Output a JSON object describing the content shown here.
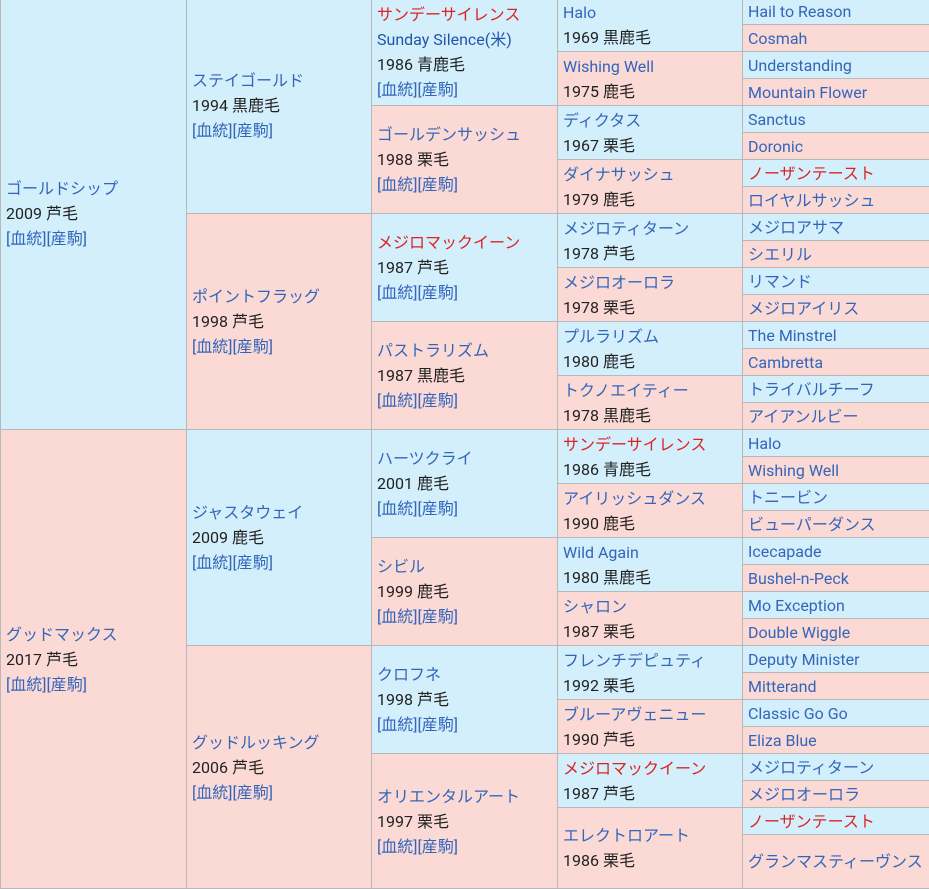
{
  "link_labels": [
    "[血統]",
    "[産駒]"
  ],
  "generations": [
    [
      {
        "name": "ゴールドシップ",
        "info": "2009 芦毛"
      },
      {
        "name": "グッドマックス",
        "info": "2017 芦毛"
      }
    ],
    [
      {
        "name": "ステイゴールド",
        "info": "1994 黒鹿毛"
      },
      {
        "name": "ポイントフラッグ",
        "info": "1998 芦毛"
      },
      {
        "name": "ジャスタウェイ",
        "info": "2009 鹿毛"
      },
      {
        "name": "グッドルッキング",
        "info": "2006 芦毛"
      }
    ],
    [
      {
        "name": "サンデーサイレンス",
        "highlight": true,
        "alt": "Sunday Silence(米)",
        "info": "1986 青鹿毛"
      },
      {
        "name": "ゴールデンサッシュ",
        "info": "1988 栗毛"
      },
      {
        "name": "メジロマックイーン",
        "highlight": true,
        "info": "1987 芦毛"
      },
      {
        "name": "パストラリズム",
        "info": "1987 黒鹿毛"
      },
      {
        "name": "ハーツクライ",
        "info": "2001 鹿毛"
      },
      {
        "name": "シビル",
        "info": "1999 鹿毛"
      },
      {
        "name": "クロフネ",
        "info": "1998 芦毛"
      },
      {
        "name": "オリエンタルアート",
        "info": "1997 栗毛"
      }
    ],
    [
      {
        "name": "Halo",
        "info": "1969 黒鹿毛"
      },
      {
        "name": "Wishing Well",
        "info": "1975 鹿毛"
      },
      {
        "name": "ディクタス",
        "info": "1967 栗毛"
      },
      {
        "name": "ダイナサッシュ",
        "info": "1979 鹿毛"
      },
      {
        "name": "メジロティターン",
        "info": "1978 芦毛"
      },
      {
        "name": "メジロオーロラ",
        "info": "1978 栗毛"
      },
      {
        "name": "プルラリズム",
        "info": "1980 鹿毛"
      },
      {
        "name": "トクノエイティー",
        "info": "1978 黒鹿毛"
      },
      {
        "name": "サンデーサイレンス",
        "highlight": true,
        "info": "1986 青鹿毛"
      },
      {
        "name": "アイリッシュダンス",
        "info": "1990 鹿毛"
      },
      {
        "name": "Wild Again",
        "info": "1980 黒鹿毛"
      },
      {
        "name": "シャロン",
        "info": "1987 栗毛"
      },
      {
        "name": "フレンチデピュティ",
        "info": "1992 栗毛"
      },
      {
        "name": "ブルーアヴェニュー",
        "info": "1990 芦毛"
      },
      {
        "name": "メジロマックイーン",
        "highlight": true,
        "info": "1987 芦毛"
      },
      {
        "name": "エレクトロアート",
        "info": "1986 栗毛"
      }
    ],
    [
      {
        "name": "Hail to Reason"
      },
      {
        "name": "Cosmah"
      },
      {
        "name": "Understanding"
      },
      {
        "name": "Mountain Flower"
      },
      {
        "name": "Sanctus"
      },
      {
        "name": "Doronic"
      },
      {
        "name": "ノーザンテースト",
        "highlight": true
      },
      {
        "name": "ロイヤルサッシュ"
      },
      {
        "name": "メジロアサマ"
      },
      {
        "name": "シエリル"
      },
      {
        "name": "リマンド"
      },
      {
        "name": "メジロアイリス"
      },
      {
        "name": "The Minstrel"
      },
      {
        "name": "Cambretta"
      },
      {
        "name": "トライバルチーフ"
      },
      {
        "name": "アイアンルビー"
      },
      {
        "name": "Halo"
      },
      {
        "name": "Wishing Well"
      },
      {
        "name": "トニービン"
      },
      {
        "name": "ビューパーダンス"
      },
      {
        "name": "Icecapade"
      },
      {
        "name": "Bushel-n-Peck"
      },
      {
        "name": "Mo Exception"
      },
      {
        "name": "Double Wiggle"
      },
      {
        "name": "Deputy Minister"
      },
      {
        "name": "Mitterand"
      },
      {
        "name": "Classic Go Go"
      },
      {
        "name": "Eliza Blue"
      },
      {
        "name": "メジロティターン"
      },
      {
        "name": "メジロオーロラ"
      },
      {
        "name": "ノーザンテースト",
        "highlight": true
      },
      {
        "name": "グランマスティーヴンス"
      }
    ]
  ]
}
